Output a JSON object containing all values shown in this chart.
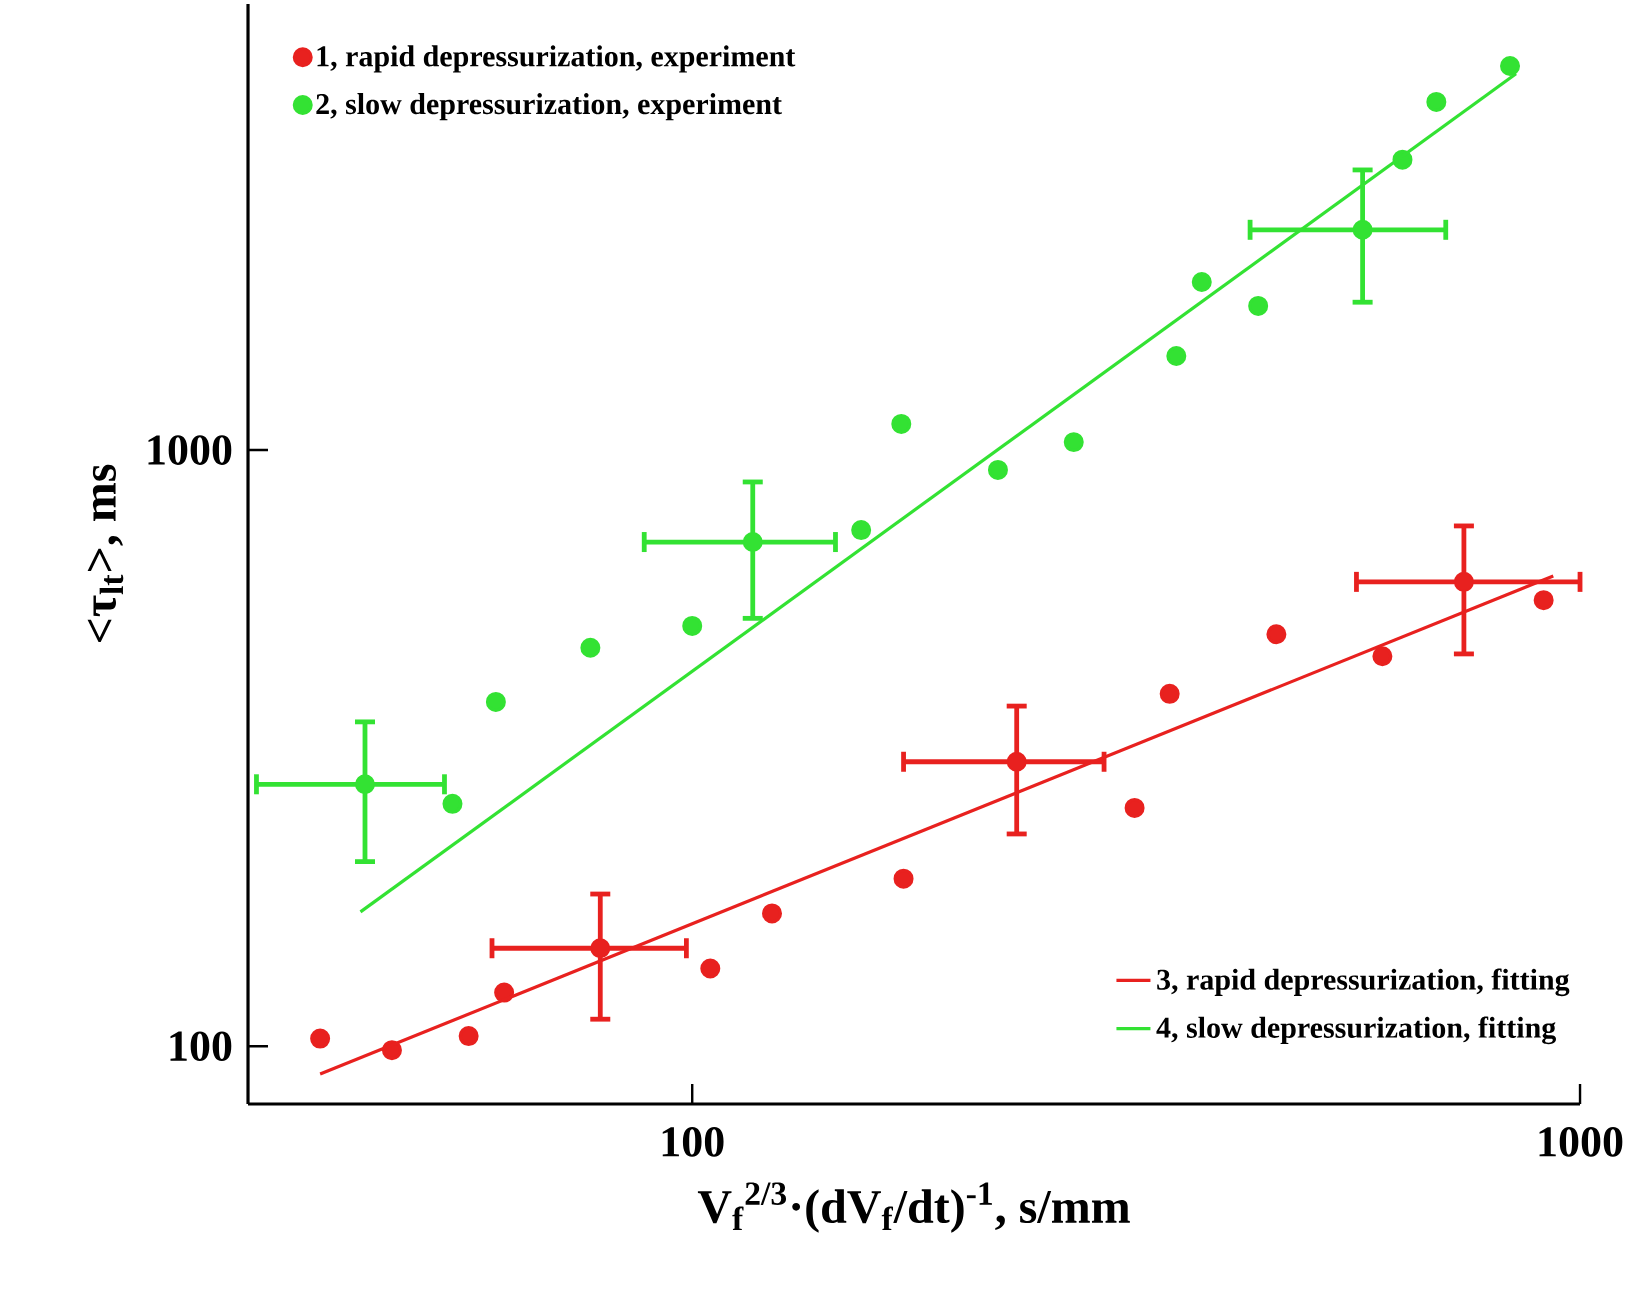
{
  "chart_data": {
    "type": "scatter",
    "xlabel": "V$_{f}$$^{2/3}$·(dV$_{f}$/dt)$^{-1}$, s/mm",
    "ylabel": "<τ$_{lt}$>, ms",
    "log": "xy",
    "xlim": [
      31.6,
      1000
    ],
    "ylim": [
      80,
      5600
    ],
    "xticks": [
      100,
      1000
    ],
    "yticks": [
      100,
      1000
    ],
    "grid": false,
    "legend": "top left",
    "marker": "circle",
    "series": [
      {
        "name": "1, rapid depressurization, experiment",
        "color": "#e8211f",
        "x": [
          38.1,
          45.9,
          56.0,
          61.4,
          78.8,
          104.8,
          123,
          173,
          232,
          315,
          345,
          455,
          599,
          740,
          910
        ],
        "values": [
          103,
          98.5,
          104,
          123,
          146,
          135,
          167,
          191,
          300,
          251,
          390,
          491,
          451,
          601,
          560
        ],
        "errors": [
          null,
          null,
          null,
          null,
          [
            111,
            180
          ],
          null,
          null,
          null,
          [
            227,
            372
          ],
          null,
          null,
          null,
          null,
          [
            455,
            746
          ],
          null
        ],
        "xerrors": [
          null,
          null,
          null,
          null,
          [
            59.5,
            98.5
          ],
          null,
          null,
          null,
          [
            173,
            291
          ],
          null,
          null,
          null,
          null,
          [
            560,
            1000
          ],
          null
        ]
      },
      {
        "name": "2, slow depressurization, experiment",
        "color": "#33e233",
        "x": [
          42.8,
          53.7,
          60.1,
          76.8,
          100,
          117,
          155,
          172,
          221,
          269,
          351,
          375,
          434,
          569,
          631,
          689,
          834
        ],
        "values": [
          275,
          255,
          378,
          466,
          507,
          701,
          734,
          1106,
          926,
          1031,
          1438,
          1914,
          1745,
          2341,
          3069,
          3837,
          4406
        ],
        "errors": [
          [
            204,
            350
          ],
          null,
          null,
          null,
          null,
          [
            522,
            884
          ],
          null,
          null,
          null,
          null,
          null,
          null,
          null,
          [
            1770,
            2950
          ],
          null,
          null,
          null
        ],
        "xerrors": [
          [
            32.3,
            52.6
          ],
          null,
          null,
          null,
          null,
          [
            88.3,
            145
          ],
          null,
          null,
          null,
          null,
          null,
          null,
          null,
          [
            425,
            706
          ],
          null,
          null,
          null
        ]
      },
      {
        "name": "3, rapid depressurization, fitting",
        "color": "#e8211f",
        "type": "line",
        "marker": "none",
        "x": [
          38.1,
          933
        ],
        "values": [
          89.8,
          615
        ]
      },
      {
        "name": "4, slow depressurization, fitting",
        "color": "#33e233",
        "type": "line",
        "marker": "none",
        "x": [
          42.3,
          847
        ],
        "values": [
          168,
          4276
        ]
      }
    ]
  }
}
